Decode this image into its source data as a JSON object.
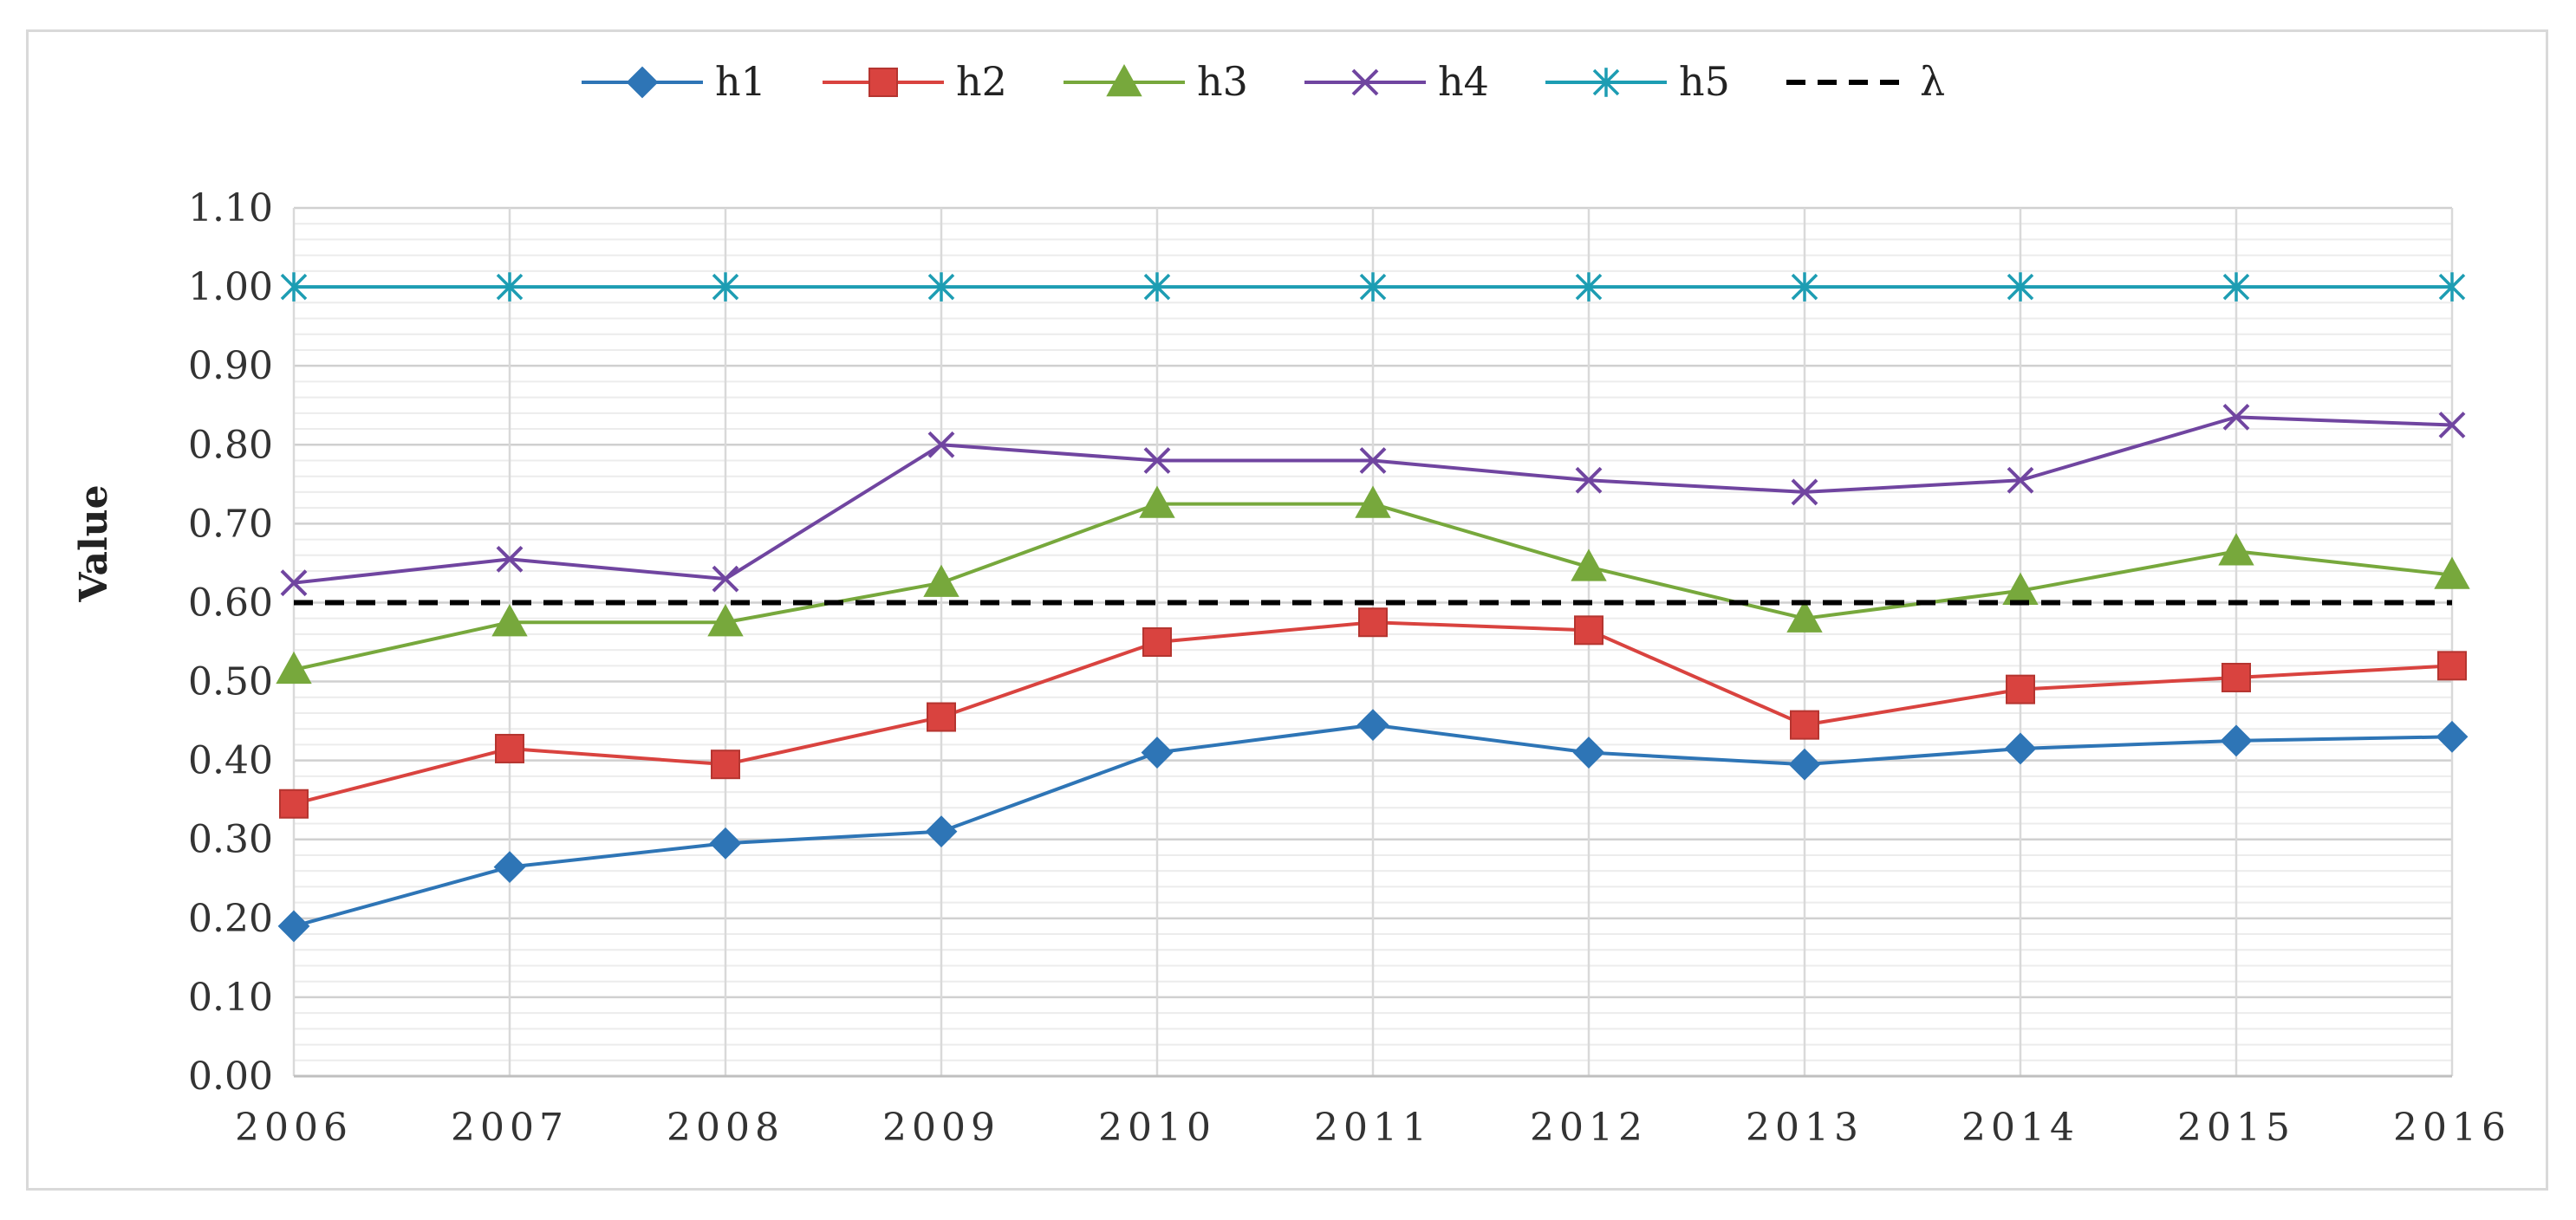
{
  "chart_data": {
    "type": "line",
    "ylabel": "Value",
    "xlabel": "",
    "ylim": [
      0,
      1.1
    ],
    "yticks": [
      "0.00",
      "0.10",
      "0.20",
      "0.30",
      "0.40",
      "0.50",
      "0.60",
      "0.70",
      "0.80",
      "0.90",
      "1.00",
      "1.10"
    ],
    "categories": [
      "2006",
      "2007",
      "2008",
      "2009",
      "2010",
      "2011",
      "2012",
      "2013",
      "2014",
      "2015",
      "2016"
    ],
    "grid": true,
    "legend_position": "top",
    "series": [
      {
        "name": "h1",
        "color": "#2e75b6",
        "marker": "diamond",
        "values": [
          0.19,
          0.265,
          0.295,
          0.31,
          0.41,
          0.445,
          0.41,
          0.395,
          0.415,
          0.425,
          0.43
        ]
      },
      {
        "name": "h2",
        "color": "#d9433f",
        "marker": "square",
        "values": [
          0.345,
          0.415,
          0.395,
          0.455,
          0.55,
          0.575,
          0.565,
          0.445,
          0.49,
          0.505,
          0.52
        ]
      },
      {
        "name": "h3",
        "color": "#77a83c",
        "marker": "triangle",
        "values": [
          0.515,
          0.575,
          0.575,
          0.625,
          0.725,
          0.725,
          0.645,
          0.58,
          0.615,
          0.665,
          0.635
        ]
      },
      {
        "name": "h4",
        "color": "#7045a0",
        "marker": "x",
        "values": [
          0.625,
          0.655,
          0.63,
          0.8,
          0.78,
          0.78,
          0.755,
          0.74,
          0.755,
          0.835,
          0.825
        ]
      },
      {
        "name": "h5",
        "color": "#1d9db3",
        "marker": "star",
        "values": [
          1.0,
          1.0,
          1.0,
          1.0,
          1.0,
          1.0,
          1.0,
          1.0,
          1.0,
          1.0,
          1.0
        ]
      },
      {
        "name": "λ",
        "color": "#000000",
        "marker": "none",
        "dashed": true,
        "values": [
          0.6,
          0.6,
          0.6,
          0.6,
          0.6,
          0.6,
          0.6,
          0.6,
          0.6,
          0.6,
          0.6
        ]
      }
    ]
  }
}
